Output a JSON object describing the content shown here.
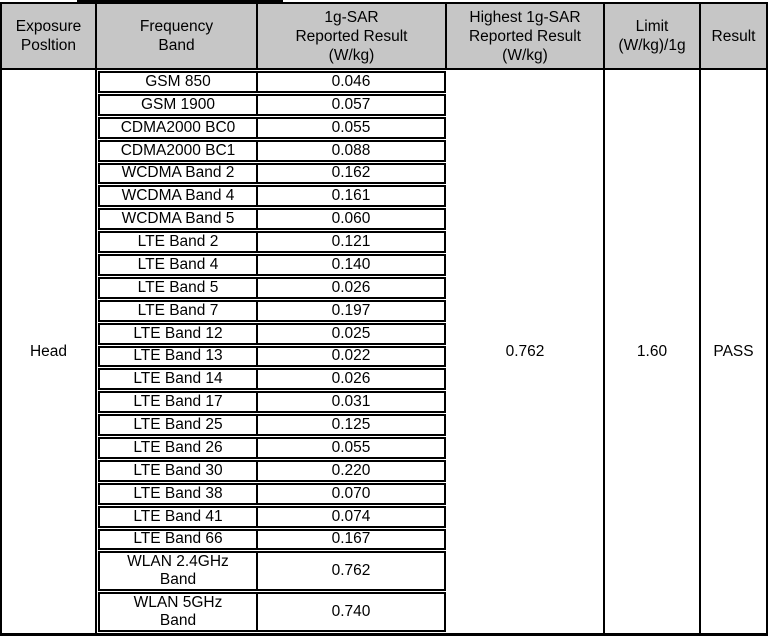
{
  "table": {
    "headers": {
      "exposure_position": "Exposure\nPosltion",
      "frequency_band": "Frequency\nBand",
      "sar_reported": "1g-SAR\nReported Result\n(W/kg)",
      "highest_sar": "Highest 1g-SAR\nReported Result\n(W/kg)",
      "limit": "Limit\n(W/kg)/1g",
      "result": "Result"
    },
    "exposure_position": "Head",
    "rows": [
      {
        "band": "GSM 850",
        "value": "0.046"
      },
      {
        "band": "GSM 1900",
        "value": "0.057"
      },
      {
        "band": "CDMA2000 BC0",
        "value": "0.055"
      },
      {
        "band": "CDMA2000 BC1",
        "value": "0.088"
      },
      {
        "band": "WCDMA Band 2",
        "value": "0.162"
      },
      {
        "band": "WCDMA Band 4",
        "value": "0.161"
      },
      {
        "band": "WCDMA Band 5",
        "value": "0.060"
      },
      {
        "band": "LTE Band 2",
        "value": "0.121"
      },
      {
        "band": "LTE Band 4",
        "value": "0.140"
      },
      {
        "band": "LTE Band 5",
        "value": "0.026"
      },
      {
        "band": "LTE Band 7",
        "value": "0.197"
      },
      {
        "band": "LTE Band 12",
        "value": "0.025"
      },
      {
        "band": "LTE Band 13",
        "value": "0.022"
      },
      {
        "band": "LTE Band 14",
        "value": "0.026"
      },
      {
        "band": "LTE Band 17",
        "value": "0.031"
      },
      {
        "band": "LTE Band 25",
        "value": "0.125"
      },
      {
        "band": "LTE Band 26",
        "value": "0.055"
      },
      {
        "band": "LTE Band 30",
        "value": "0.220"
      },
      {
        "band": "LTE Band 38",
        "value": "0.070"
      },
      {
        "band": "LTE Band 41",
        "value": "0.074"
      },
      {
        "band": "LTE Band 66",
        "value": "0.167"
      },
      {
        "band": "WLAN 2.4GHz\nBand",
        "value": "0.762"
      },
      {
        "band": "WLAN 5GHz\nBand",
        "value": "0.740"
      }
    ],
    "highest_reported": "0.762",
    "limit": "1.60",
    "result": "PASS",
    "colors": {
      "header_bg": "#c6c6c6",
      "border": "#000000",
      "background": "#ffffff"
    }
  }
}
